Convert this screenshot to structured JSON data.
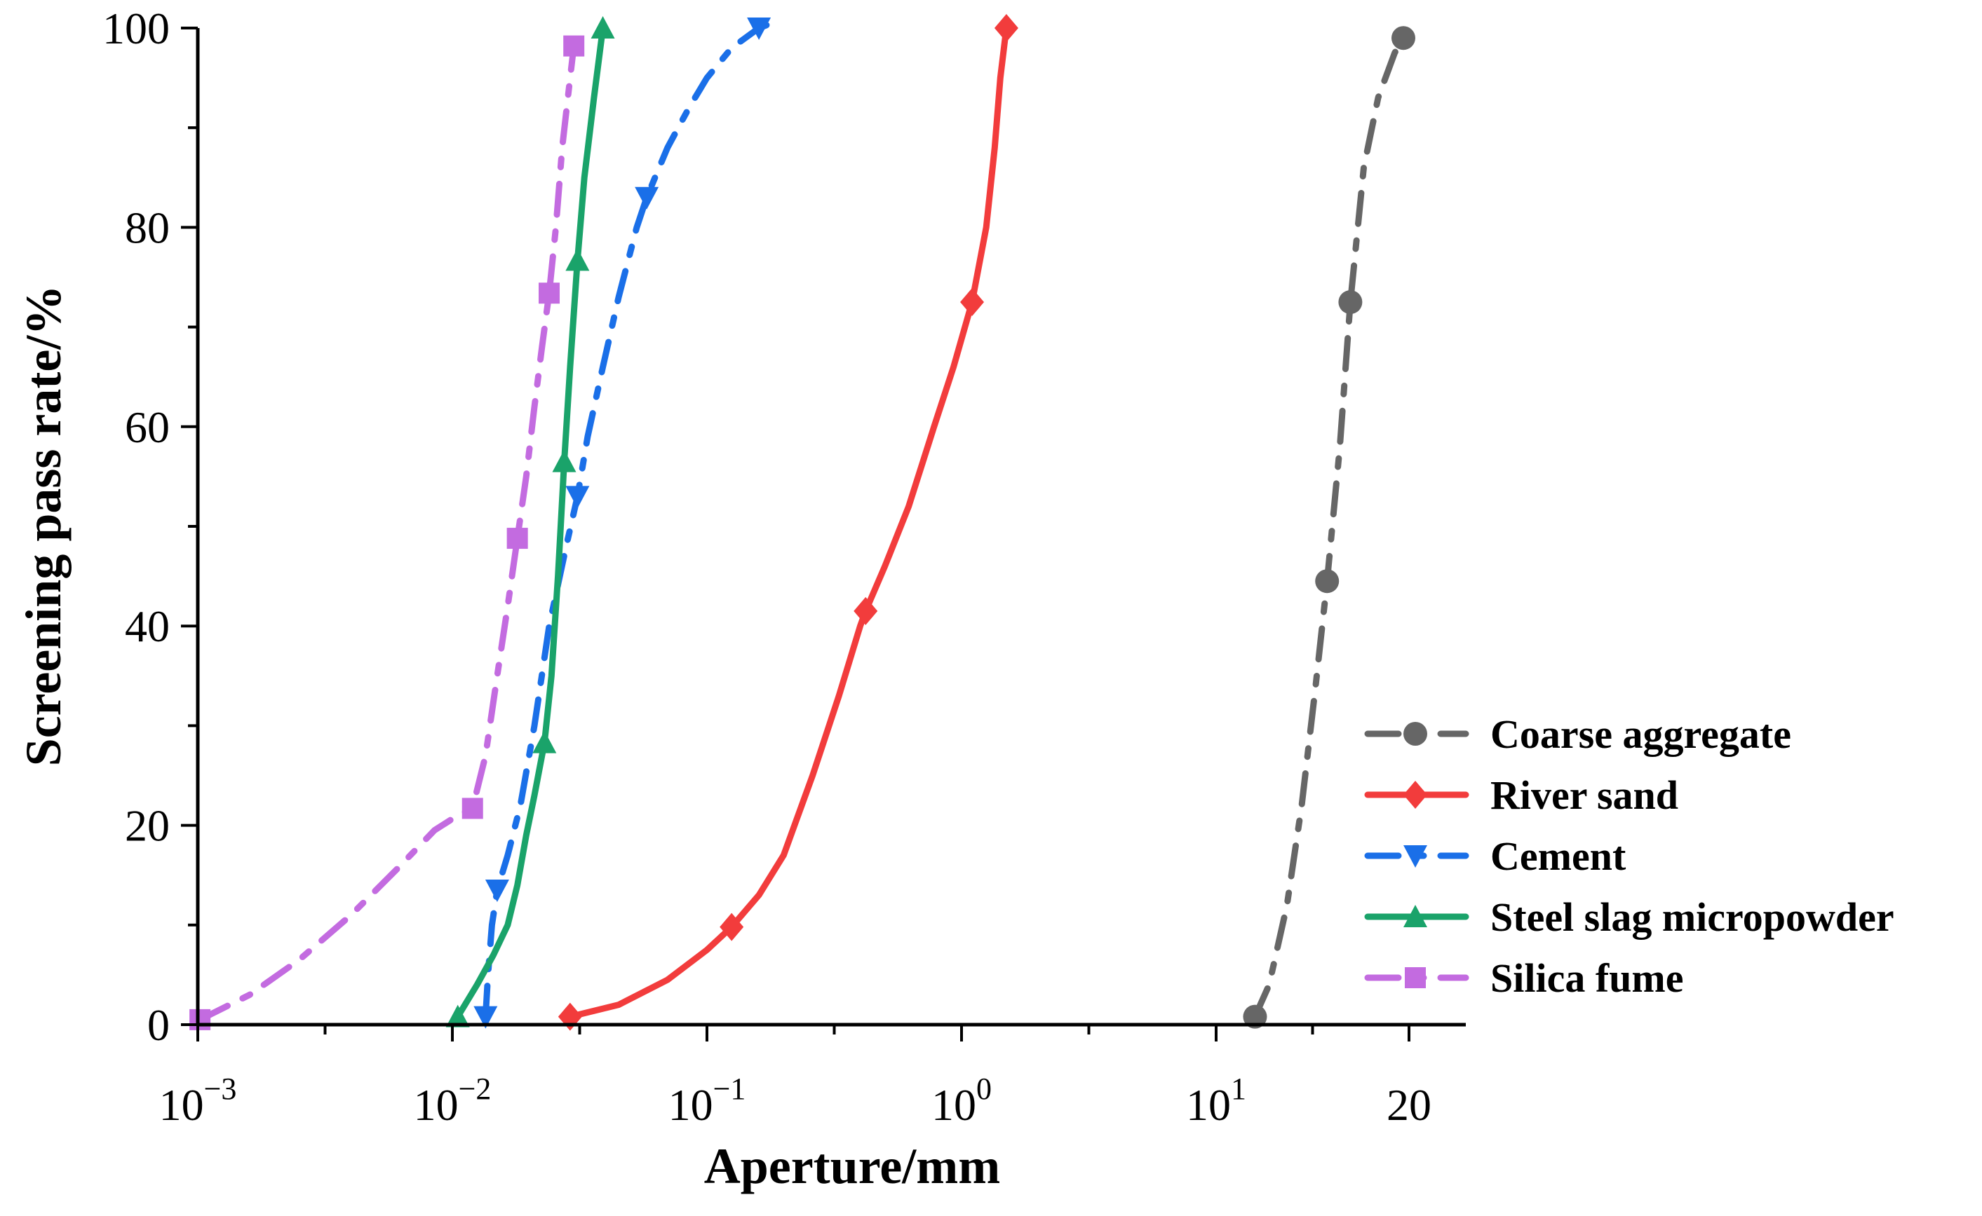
{
  "chart_data": {
    "type": "line",
    "title": "",
    "xlabel": "Aperture/mm",
    "ylabel": "Screening pass rate/%",
    "xscale": "log",
    "ylim": [
      0,
      100
    ],
    "yticks": [
      0,
      20,
      40,
      60,
      80,
      100
    ],
    "xticks": [
      {
        "value": 0.001,
        "base": "10",
        "exp": "−3"
      },
      {
        "value": 0.01,
        "base": "10",
        "exp": "−2"
      },
      {
        "value": 0.1,
        "base": "10",
        "exp": "−1"
      },
      {
        "value": 1,
        "base": "10",
        "exp": "0"
      },
      {
        "value": 10,
        "base": "10",
        "exp": "1"
      },
      {
        "value": 20,
        "base": "20",
        "exp": ""
      }
    ],
    "legend_position": "bottom-right",
    "series": [
      {
        "name": "Coarse aggregate",
        "color": "#666666",
        "marker": "circle",
        "dash": "dashdot",
        "curve": [
          [
            11.5,
            0.8
          ],
          [
            12.1,
            4
          ],
          [
            12.9,
            12
          ],
          [
            13.6,
            22
          ],
          [
            14.3,
            34
          ],
          [
            14.9,
            44.5
          ],
          [
            15.6,
            58
          ],
          [
            16.2,
            72.5
          ],
          [
            17.0,
            86
          ],
          [
            17.9,
            93
          ],
          [
            19.0,
            97.5
          ],
          [
            19.6,
            99
          ]
        ],
        "points": [
          [
            11.5,
            0.8
          ],
          [
            14.9,
            44.5
          ],
          [
            16.2,
            72.5
          ],
          [
            19.6,
            99
          ]
        ]
      },
      {
        "name": "River sand",
        "color": "#f23c3c",
        "marker": "diamond",
        "dash": "solid",
        "curve": [
          [
            0.029,
            0.8
          ],
          [
            0.045,
            2
          ],
          [
            0.07,
            4.5
          ],
          [
            0.1,
            7.5
          ],
          [
            0.125,
            9.8
          ],
          [
            0.16,
            13
          ],
          [
            0.2,
            17
          ],
          [
            0.26,
            25
          ],
          [
            0.33,
            33
          ],
          [
            0.4,
            40
          ],
          [
            0.42,
            41.5
          ],
          [
            0.5,
            46
          ],
          [
            0.62,
            52
          ],
          [
            0.78,
            60
          ],
          [
            0.93,
            66
          ],
          [
            1.1,
            72.5
          ],
          [
            1.25,
            80
          ],
          [
            1.35,
            88
          ],
          [
            1.42,
            95
          ],
          [
            1.5,
            100
          ]
        ],
        "points": [
          [
            0.029,
            0.8
          ],
          [
            0.125,
            9.8
          ],
          [
            0.42,
            41.5
          ],
          [
            1.1,
            72.5
          ],
          [
            1.5,
            100
          ]
        ]
      },
      {
        "name": "Cement",
        "color": "#1a6fe8",
        "marker": "triangle-down",
        "dash": "dashdot",
        "curve": [
          [
            0.0135,
            0.8
          ],
          [
            0.0138,
            5
          ],
          [
            0.0143,
            10
          ],
          [
            0.015,
            13.5
          ],
          [
            0.0165,
            17
          ],
          [
            0.0185,
            22
          ],
          [
            0.021,
            30
          ],
          [
            0.024,
            40
          ],
          [
            0.028,
            48
          ],
          [
            0.031,
            53
          ],
          [
            0.034,
            59
          ],
          [
            0.039,
            66
          ],
          [
            0.045,
            73
          ],
          [
            0.053,
            80
          ],
          [
            0.058,
            83
          ],
          [
            0.07,
            88
          ],
          [
            0.085,
            92
          ],
          [
            0.1,
            95
          ],
          [
            0.125,
            98
          ],
          [
            0.16,
            100
          ],
          [
            0.18,
            100.5
          ]
        ],
        "points": [
          [
            0.0135,
            0.8
          ],
          [
            0.015,
            13.5
          ],
          [
            0.031,
            53
          ],
          [
            0.058,
            83
          ],
          [
            0.16,
            100
          ]
        ]
      },
      {
        "name": "Steel slag micropowder",
        "color": "#1aa36a",
        "marker": "triangle-up",
        "dash": "solid",
        "curve": [
          [
            0.0105,
            0.8
          ],
          [
            0.0125,
            4
          ],
          [
            0.0145,
            7
          ],
          [
            0.0165,
            10
          ],
          [
            0.018,
            14
          ],
          [
            0.0195,
            19
          ],
          [
            0.021,
            23
          ],
          [
            0.023,
            28.3
          ],
          [
            0.0245,
            35
          ],
          [
            0.026,
            45
          ],
          [
            0.0275,
            56.5
          ],
          [
            0.029,
            66
          ],
          [
            0.031,
            76.7
          ],
          [
            0.033,
            85
          ],
          [
            0.036,
            93
          ],
          [
            0.039,
            100
          ]
        ],
        "points": [
          [
            0.0105,
            0.8
          ],
          [
            0.023,
            28.3
          ],
          [
            0.0275,
            56.5
          ],
          [
            0.031,
            76.7
          ],
          [
            0.039,
            100
          ]
        ]
      },
      {
        "name": "Silica fume",
        "color": "#c36be0",
        "marker": "square",
        "dash": "dashdot",
        "curve": [
          [
            0.00102,
            0.5
          ],
          [
            0.0016,
            3
          ],
          [
            0.0025,
            6.5
          ],
          [
            0.004,
            11
          ],
          [
            0.006,
            15.5
          ],
          [
            0.0085,
            19.5
          ],
          [
            0.0105,
            21
          ],
          [
            0.012,
            21.7
          ],
          [
            0.0135,
            27
          ],
          [
            0.015,
            35
          ],
          [
            0.0165,
            42
          ],
          [
            0.018,
            48.8
          ],
          [
            0.0195,
            55
          ],
          [
            0.021,
            62
          ],
          [
            0.0225,
            68
          ],
          [
            0.024,
            73.4
          ],
          [
            0.0255,
            80
          ],
          [
            0.027,
            88
          ],
          [
            0.029,
            95
          ],
          [
            0.03,
            98.2
          ]
        ],
        "points": [
          [
            0.00102,
            0.5
          ],
          [
            0.012,
            21.7
          ],
          [
            0.018,
            48.8
          ],
          [
            0.024,
            73.4
          ],
          [
            0.03,
            98.2
          ]
        ]
      }
    ]
  }
}
